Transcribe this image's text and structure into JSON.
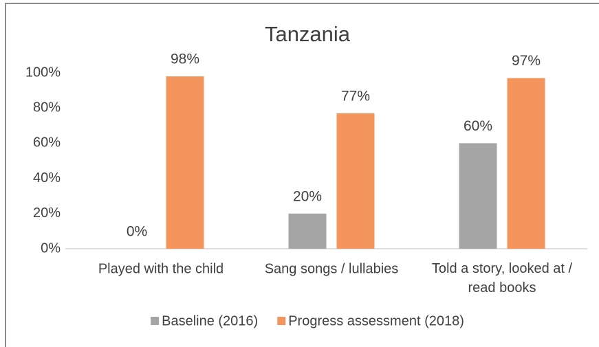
{
  "chart_data": {
    "type": "bar",
    "title": "Tanzania",
    "categories": [
      "Played with the child",
      "Sang songs / lullabies",
      "Told a story, looked at / read books"
    ],
    "series": [
      {
        "name": "Baseline (2016)",
        "color": "#a5a5a5",
        "values": [
          0,
          20,
          60
        ],
        "value_labels": [
          "0%",
          "20%",
          "60%"
        ]
      },
      {
        "name": "Progress assessment (2018)",
        "color": "#f4955e",
        "values": [
          98,
          77,
          97
        ],
        "value_labels": [
          "98%",
          "77%",
          "97%"
        ]
      }
    ],
    "ylim": [
      0,
      100
    ],
    "yticks": [
      {
        "value": 0,
        "label": "0%"
      },
      {
        "value": 20,
        "label": "20%"
      },
      {
        "value": 40,
        "label": "40%"
      },
      {
        "value": 60,
        "label": "60%"
      },
      {
        "value": 80,
        "label": "80%"
      },
      {
        "value": 100,
        "label": "100%"
      }
    ],
    "grid": false,
    "legend": "bottom"
  }
}
